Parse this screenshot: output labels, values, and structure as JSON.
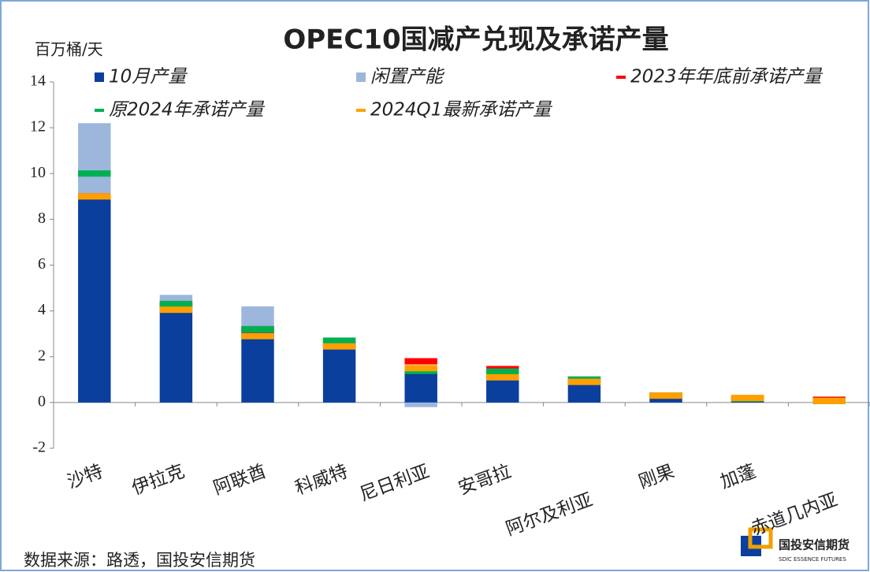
{
  "chart_data": {
    "type": "bar",
    "title": "OPEC10国减产兑现及承诺产量",
    "y_label": "百万桶/天",
    "categories": [
      "沙特",
      "伊拉克",
      "阿联酋",
      "科威特",
      "尼日利亚",
      "安哥拉",
      "阿尔及利亚",
      "刚果",
      "加蓬",
      "赤道几内亚"
    ],
    "series": [
      {
        "name": "10月产量",
        "color": "#0a3f9e",
        "stacked": true,
        "values": [
          9.0,
          4.3,
          3.2,
          2.55,
          1.4,
          1.2,
          0.95,
          0.25,
          0.2,
          0.06
        ]
      },
      {
        "name": "闲置产能",
        "color": "#9db6dc",
        "stacked": true,
        "values": [
          3.2,
          0.4,
          1.0,
          0.25,
          -0.2,
          0,
          0.15,
          0,
          0,
          0
        ]
      },
      {
        "name": "2023年年底前承诺产量",
        "color": "#ff0000",
        "marker": true,
        "values": [
          9.0,
          4.3,
          3.2,
          2.55,
          1.8,
          1.46,
          1.0,
          0.3,
          0.17,
          0.12
        ]
      },
      {
        "name": "原2024年承诺产量",
        "color": "#00b050",
        "marker": true,
        "values": [
          10.0,
          4.3,
          3.2,
          2.7,
          1.38,
          1.35,
          1.0,
          0.3,
          0.17,
          0.07
        ]
      },
      {
        "name": "2024Q1最新承诺产量",
        "color": "#ffa000",
        "marker": true,
        "values": [
          9.0,
          4.05,
          2.9,
          2.45,
          1.5,
          1.1,
          0.9,
          0.3,
          0.2,
          0.07
        ]
      }
    ],
    "ylim": [
      -2,
      14
    ],
    "yticks": [
      -2,
      0,
      2,
      4,
      6,
      8,
      10,
      12,
      14
    ],
    "source": "数据来源：路透，国投安信期货",
    "logo": "国投安信期货",
    "logo_sub": "SDIC ESSENCE FUTURES"
  }
}
